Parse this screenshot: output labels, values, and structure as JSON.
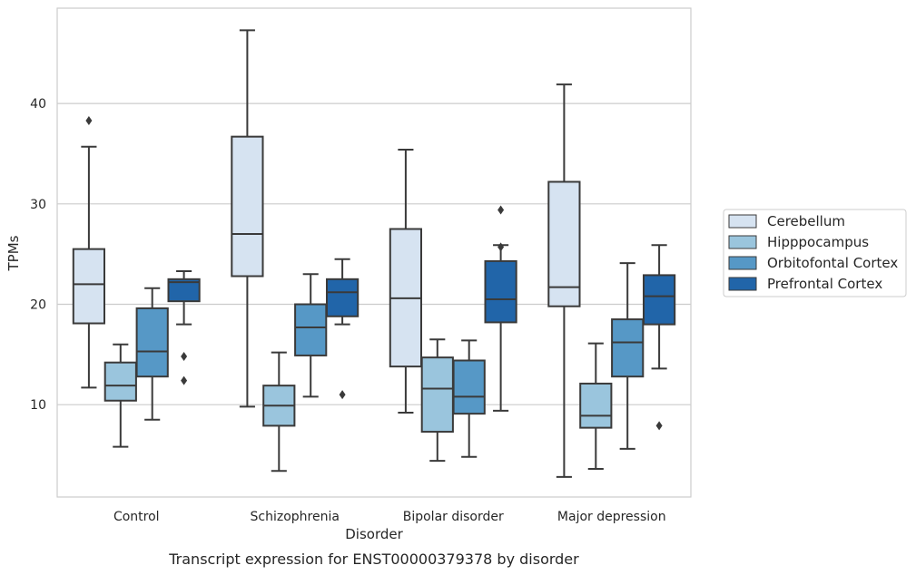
{
  "chart_data": {
    "type": "box",
    "caption": "Transcript expression for ENST00000379378 by disorder",
    "xlabel": "Disorder",
    "ylabel": "TPMs",
    "ylim": [
      0.8,
      49.5
    ],
    "yticks": [
      10,
      20,
      30,
      40
    ],
    "grid": "horizontal",
    "legend_position": "right",
    "categories": [
      "Control",
      "Schizophrenia",
      "Bipolar disorder",
      "Major depression"
    ],
    "series": [
      {
        "name": "Cerebellum",
        "color": "#d6e3f1",
        "boxes": [
          {
            "whisker_low": 11.7,
            "q1": 18.1,
            "median": 22.0,
            "q3": 25.5,
            "whisker_high": 35.7,
            "outliers": [
              38.3
            ]
          },
          {
            "whisker_low": 9.8,
            "q1": 22.8,
            "median": 27.0,
            "q3": 36.7,
            "whisker_high": 47.3,
            "outliers": []
          },
          {
            "whisker_low": 9.2,
            "q1": 13.8,
            "median": 20.6,
            "q3": 27.5,
            "whisker_high": 35.4,
            "outliers": []
          },
          {
            "whisker_low": 2.8,
            "q1": 19.8,
            "median": 21.7,
            "q3": 32.2,
            "whisker_high": 41.9,
            "outliers": []
          }
        ]
      },
      {
        "name": "Hipppocampus",
        "color": "#9ac5dd",
        "boxes": [
          {
            "whisker_low": 5.8,
            "q1": 10.4,
            "median": 11.9,
            "q3": 14.2,
            "whisker_high": 16.0,
            "outliers": []
          },
          {
            "whisker_low": 3.4,
            "q1": 7.9,
            "median": 9.9,
            "q3": 11.9,
            "whisker_high": 15.2,
            "outliers": []
          },
          {
            "whisker_low": 4.4,
            "q1": 7.3,
            "median": 11.6,
            "q3": 14.7,
            "whisker_high": 16.5,
            "outliers": []
          },
          {
            "whisker_low": 3.6,
            "q1": 7.7,
            "median": 8.9,
            "q3": 12.1,
            "whisker_high": 16.1,
            "outliers": []
          }
        ]
      },
      {
        "name": "Orbitofontal Cortex",
        "color": "#5698c6",
        "boxes": [
          {
            "whisker_low": 8.5,
            "q1": 12.8,
            "median": 15.3,
            "q3": 19.6,
            "whisker_high": 21.6,
            "outliers": []
          },
          {
            "whisker_low": 10.8,
            "q1": 14.9,
            "median": 17.7,
            "q3": 20.0,
            "whisker_high": 23.0,
            "outliers": []
          },
          {
            "whisker_low": 4.8,
            "q1": 9.1,
            "median": 10.8,
            "q3": 14.4,
            "whisker_high": 16.4,
            "outliers": []
          },
          {
            "whisker_low": 5.6,
            "q1": 12.8,
            "median": 16.2,
            "q3": 18.5,
            "whisker_high": 24.1,
            "outliers": []
          }
        ]
      },
      {
        "name": "Prefrontal Cortex",
        "color": "#2165a9",
        "boxes": [
          {
            "whisker_low": 18.0,
            "q1": 20.3,
            "median": 22.2,
            "q3": 22.5,
            "whisker_high": 23.3,
            "outliers": [
              14.8,
              12.4
            ]
          },
          {
            "whisker_low": 18.0,
            "q1": 18.8,
            "median": 21.2,
            "q3": 22.5,
            "whisker_high": 24.5,
            "outliers": [
              11.0
            ]
          },
          {
            "whisker_low": 9.4,
            "q1": 18.2,
            "median": 20.5,
            "q3": 24.3,
            "whisker_high": 25.9,
            "outliers": [
              29.4,
              25.7
            ]
          },
          {
            "whisker_low": 13.6,
            "q1": 18.0,
            "median": 20.8,
            "q3": 22.9,
            "whisker_high": 25.9,
            "outliers": [
              7.9
            ]
          }
        ]
      }
    ]
  }
}
